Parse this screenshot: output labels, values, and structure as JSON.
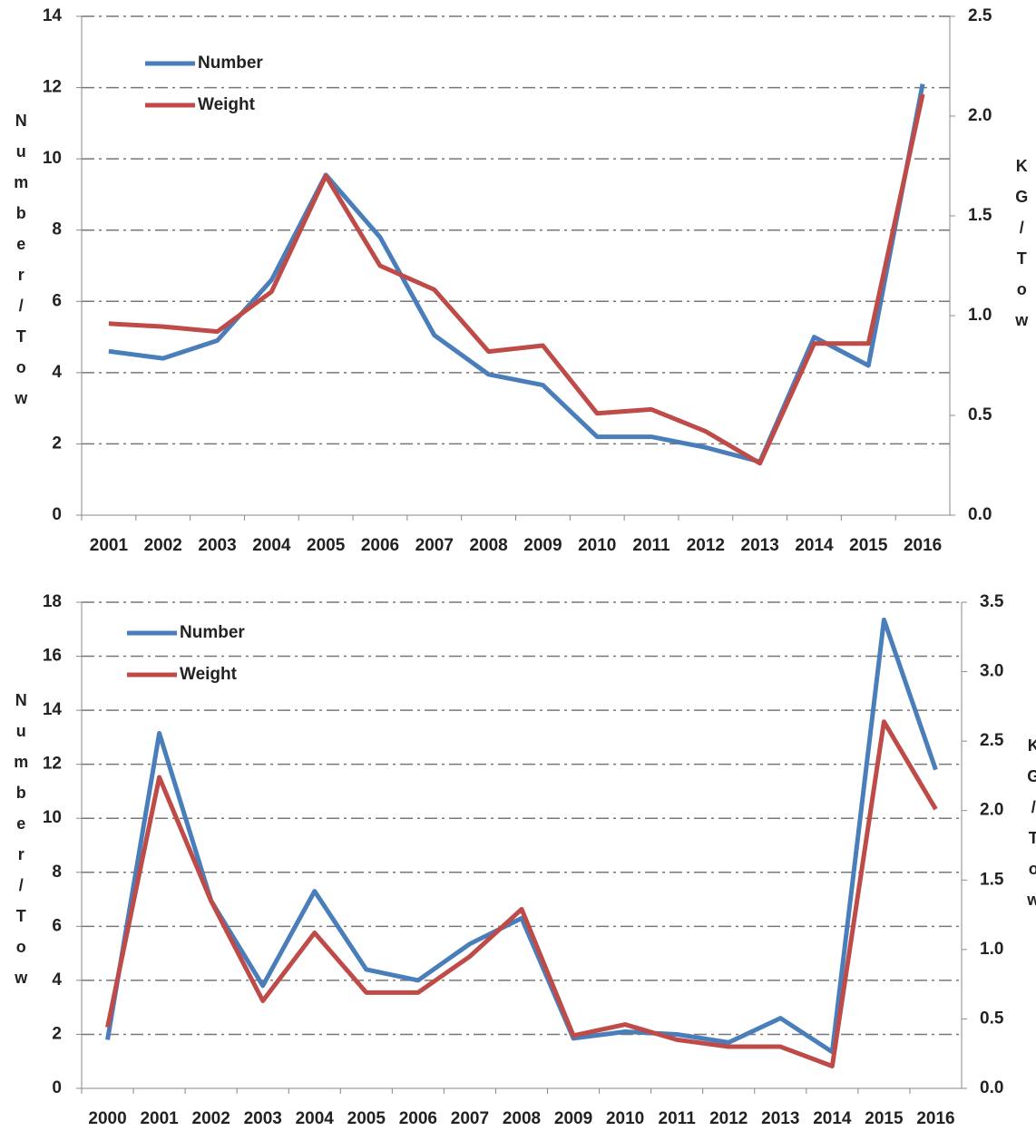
{
  "chart_data": [
    {
      "type": "line",
      "categories": [
        "2001",
        "2002",
        "2003",
        "2004",
        "2005",
        "2006",
        "2007",
        "2008",
        "2009",
        "2010",
        "2011",
        "2012",
        "2013",
        "2014",
        "2015",
        "2016"
      ],
      "y_label": "Number/Tow",
      "y2_label": "KG/Tow",
      "ylim": [
        0,
        14
      ],
      "yticks": [
        0,
        2,
        4,
        6,
        8,
        10,
        12,
        14
      ],
      "y2lim": [
        0,
        2.5
      ],
      "y2ticks": [
        {
          "value": 0,
          "label": "0.0"
        },
        {
          "value": 0.5,
          "label": "0.5"
        },
        {
          "value": 1,
          "label": "1.0"
        },
        {
          "value": 1.5,
          "label": "1.5"
        },
        {
          "value": 2,
          "label": "2.0"
        },
        {
          "value": 2.5,
          "label": "2.5"
        }
      ],
      "grid": true,
      "legend": "upper-left",
      "series": [
        {
          "name": "Number",
          "color": "#4a7ebb",
          "values": [
            4.6,
            4.4,
            4.9,
            6.6,
            9.55,
            7.8,
            5.05,
            3.95,
            3.65,
            2.2,
            2.2,
            1.9,
            1.5,
            5.0,
            4.2,
            12.1
          ]
        },
        {
          "name": "Weight",
          "color": "#be4b48",
          "axis": "y2",
          "values": [
            0.96,
            0.945,
            0.92,
            1.12,
            1.7,
            1.25,
            1.13,
            0.82,
            0.85,
            0.51,
            0.53,
            0.42,
            0.26,
            0.86,
            0.86,
            2.11
          ]
        }
      ]
    },
    {
      "type": "line",
      "categories": [
        "2000",
        "2001",
        "2002",
        "2003",
        "2004",
        "2005",
        "2006",
        "2007",
        "2008",
        "2009",
        "2010",
        "2011",
        "2012",
        "2013",
        "2014",
        "2015",
        "2016"
      ],
      "y_label": "Number/Tow",
      "y2_label": "KG/Tow",
      "ylim": [
        0,
        18
      ],
      "yticks": [
        0,
        2,
        4,
        6,
        8,
        10,
        12,
        14,
        16,
        18
      ],
      "y2lim": [
        0,
        3.5
      ],
      "y2ticks": [
        {
          "value": 0,
          "label": "0.0"
        },
        {
          "value": 0.5,
          "label": "0.5"
        },
        {
          "value": 1,
          "label": "1.0"
        },
        {
          "value": 1.5,
          "label": "1.5"
        },
        {
          "value": 2,
          "label": "2.0"
        },
        {
          "value": 2.5,
          "label": "2.5"
        },
        {
          "value": 3,
          "label": "3.0"
        },
        {
          "value": 3.5,
          "label": "3.5"
        }
      ],
      "grid": true,
      "legend": "upper-left",
      "series": [
        {
          "name": "Number",
          "color": "#4a7ebb",
          "values": [
            1.8,
            13.15,
            6.95,
            3.8,
            7.3,
            4.4,
            4.0,
            5.35,
            6.3,
            1.85,
            2.1,
            2.0,
            1.7,
            2.6,
            1.35,
            17.35,
            11.8
          ]
        },
        {
          "name": "Weight",
          "color": "#be4b48",
          "axis": "y2",
          "values": [
            0.44,
            2.24,
            1.35,
            0.63,
            1.12,
            0.69,
            0.69,
            0.95,
            1.29,
            0.38,
            0.46,
            0.35,
            0.3,
            0.3,
            0.16,
            2.64,
            2.01
          ]
        }
      ]
    }
  ]
}
